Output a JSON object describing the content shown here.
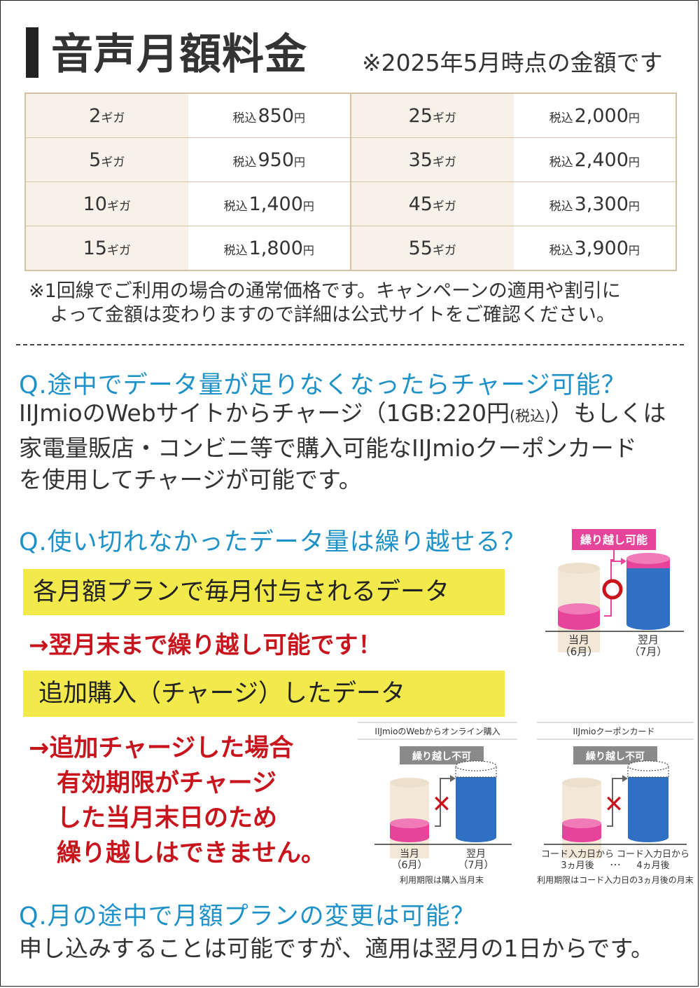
{
  "header": {
    "title": "音声月額料金",
    "note": "※2025年5月時点の金額です"
  },
  "prices": {
    "unit": "ギガ",
    "tax_label": "税込",
    "yen": "円",
    "rows": [
      {
        "left_gb": "2",
        "left_price": "850",
        "right_gb": "25",
        "right_price": "2,000"
      },
      {
        "left_gb": "5",
        "left_price": "950",
        "right_gb": "35",
        "right_price": "2,400"
      },
      {
        "left_gb": "10",
        "left_price": "1,400",
        "right_gb": "45",
        "right_price": "3,300"
      },
      {
        "left_gb": "15",
        "left_price": "1,800",
        "right_gb": "55",
        "right_price": "3,900"
      }
    ]
  },
  "notice": {
    "line1": "※1回線でご利用の場合の通常価格です。キャンペーンの適用や割引に",
    "line2": "よって金額は変わりますので詳細は公式サイトをご確認ください。"
  },
  "faq1": {
    "question": "Q.途中でデータ量が足りなくなったらチャージ可能？",
    "line1_a": "IIJmioのWebサイトからチャージ（1GB:220円",
    "line1_small": "(税込)",
    "line1_b": "）もしくは",
    "line2": "家電量販店・コンビニ等で購入可能なIIJmioクーポンカード",
    "line3": "を使用してチャージが可能です。"
  },
  "faq2": {
    "question": "Q.使い切れなかったデータ量は繰り越せる？",
    "box1": "各月額プランで毎月付与されるデータ",
    "answer1": "→翌月末まで繰り越し可能です！",
    "box2": "追加購入（チャージ）したデータ",
    "answer2": {
      "line1": "→追加チャージした場合",
      "line2": "有効期限がチャージ",
      "line3": "した当月末日のため",
      "line4": "繰り越しはできません。"
    },
    "diagram_top": {
      "badge": "繰り越し可能",
      "label_left_1": "当月",
      "label_left_2": "（6月）",
      "label_right_1": "翌月",
      "label_right_2": "（7月）"
    },
    "diagram_web": {
      "caption": "IIJmioのWebからオンライン購入",
      "badge": "繰り越し不可",
      "label_left_1": "当月",
      "label_left_2": "（6月）",
      "label_right_1": "翌月",
      "label_right_2": "（7月）",
      "footer": "利用期限は購入当月末"
    },
    "diagram_coupon": {
      "caption": "IIJmioクーポンカード",
      "badge": "繰り越し不可",
      "label_left_1": "コード入力日から",
      "label_left_2": "3ヵ月後",
      "label_dots": "…",
      "label_right_1": "コード入力日から",
      "label_right_2": "4ヵ月後",
      "footer": "利用期限はコード入力日の3ヵ月後の月末"
    }
  },
  "faq3": {
    "question": "Q.月の途中で月額プランの変更は可能？",
    "answer": "申し込みすることは可能ですが、適用は翌月の1日からです。"
  },
  "colors": {
    "accent_blue": "#1e91c8",
    "highlight_yellow": "#f2ea4a",
    "alert_red": "#c8151d",
    "pink": "#e6439a",
    "cylinder_blue": "#2f6fc4",
    "table_border": "#d3c3a3"
  }
}
